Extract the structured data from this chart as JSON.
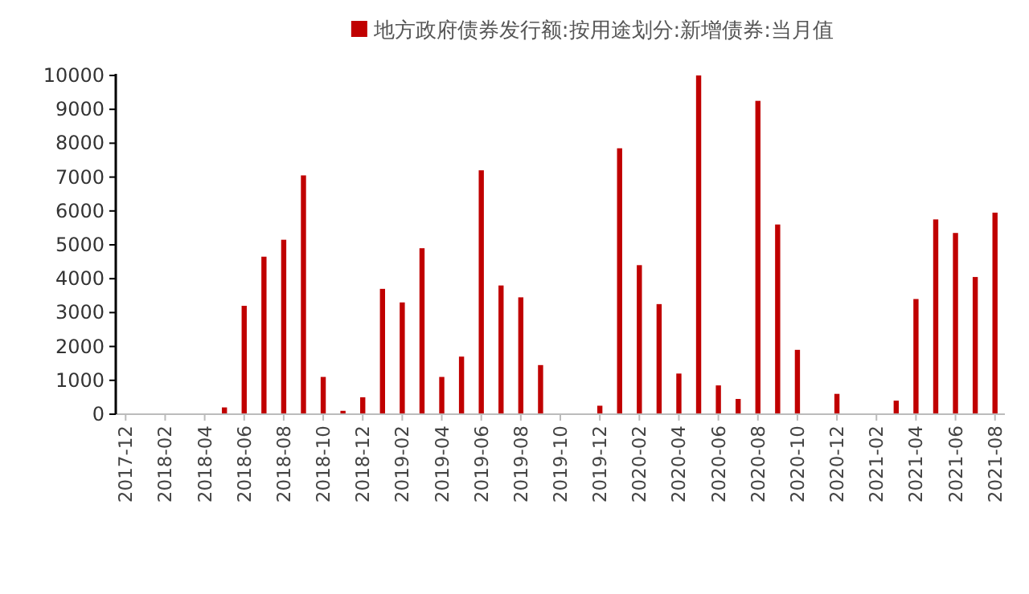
{
  "chart_data": {
    "type": "bar",
    "categories": [
      "2017-12",
      null,
      "2018-02",
      null,
      "2018-04",
      null,
      "2018-06",
      null,
      "2018-08",
      null,
      "2018-10",
      null,
      "2018-12",
      null,
      "2019-02",
      null,
      "2019-04",
      null,
      "2019-06",
      null,
      "2019-08",
      null,
      "2019-10",
      null,
      "2019-12",
      null,
      "2020-02",
      null,
      "2020-04",
      null,
      "2020-06",
      null,
      "2020-08",
      null,
      "2020-10",
      null,
      "2020-12",
      null,
      "2021-02",
      null,
      "2021-04",
      null,
      "2021-06",
      null,
      "2021-08"
    ],
    "series": [
      {
        "name": "地方政府债券发行额:按用途划分:新增债券:当月值",
        "color": "#c00000",
        "values": [
          0,
          0,
          0,
          0,
          0,
          200,
          3200,
          4650,
          5150,
          7050,
          1100,
          100,
          500,
          3700,
          3300,
          4900,
          1100,
          1700,
          7200,
          3800,
          3450,
          1450,
          0,
          0,
          250,
          7850,
          4400,
          3250,
          1200,
          10000,
          850,
          450,
          9250,
          5600,
          1900,
          0,
          600,
          0,
          0,
          400,
          3400,
          5750,
          5350,
          4050,
          5950
        ]
      }
    ],
    "ylim": [
      0,
      10000
    ],
    "yticks": [
      0,
      1000,
      2000,
      3000,
      4000,
      5000,
      6000,
      7000,
      8000,
      9000,
      10000
    ],
    "legend": "top",
    "grid": false
  }
}
